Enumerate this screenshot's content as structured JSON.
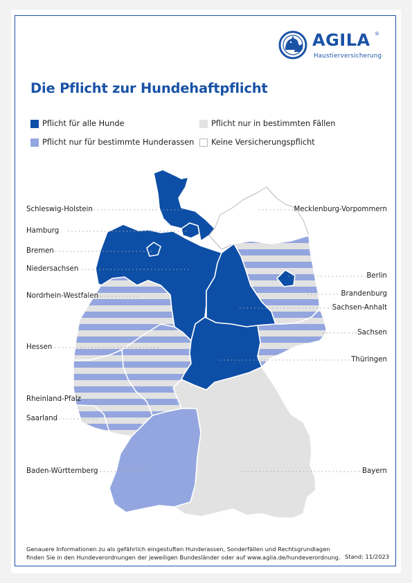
{
  "brand": {
    "name": "AGILA",
    "registered": "®",
    "tagline": "Haustierversicherung"
  },
  "title": "Die Pflicht zur Hundehaftpflicht",
  "colors": {
    "all_dogs": "#0d4ea6",
    "certain_breeds": "#94a6df",
    "certain_cases": "#e2e2e2",
    "none": "#ffffff",
    "brand_blue": "#1a52a6"
  },
  "legend": [
    {
      "key": "all_dogs",
      "label": "Pflicht für alle Hunde"
    },
    {
      "key": "certain_cases",
      "label": "Pflicht nur in bestimmten Fällen"
    },
    {
      "key": "certain_breeds",
      "label": "Pflicht nur für bestimmte Hunderassen"
    },
    {
      "key": "none",
      "label": "Keine Versicherungspflicht"
    }
  ],
  "states": [
    {
      "name": "Schleswig-Holstein",
      "category": "all_dogs"
    },
    {
      "name": "Hamburg",
      "category": "all_dogs"
    },
    {
      "name": "Bremen",
      "category": "all_dogs"
    },
    {
      "name": "Niedersachsen",
      "category": "all_dogs"
    },
    {
      "name": "Nordrhein-Westfalen",
      "category": "mixed"
    },
    {
      "name": "Hessen",
      "category": "mixed"
    },
    {
      "name": "Rheinland-Pfalz",
      "category": "mixed"
    },
    {
      "name": "Saarland",
      "category": "mixed"
    },
    {
      "name": "Baden-Württemberg",
      "category": "certain_breeds"
    },
    {
      "name": "Mecklenburg-Vorpommern",
      "category": "none"
    },
    {
      "name": "Berlin",
      "category": "all_dogs"
    },
    {
      "name": "Brandenburg",
      "category": "mixed"
    },
    {
      "name": "Sachsen-Anhalt",
      "category": "all_dogs"
    },
    {
      "name": "Sachsen",
      "category": "mixed"
    },
    {
      "name": "Thüringen",
      "category": "all_dogs"
    },
    {
      "name": "Bayern",
      "category": "certain_cases"
    }
  ],
  "footer": {
    "line1": "Genauere Informationen zu als gefährlich eingestuften Hunderassen, Sonderfällen und Rechtsgrundlagen",
    "line2": "finden Sie in den Hundeverordnungen der jeweiligen Bundesländer oder auf www.agila.de/hundeverordnung.",
    "stand": "Stand: 11/2023"
  }
}
